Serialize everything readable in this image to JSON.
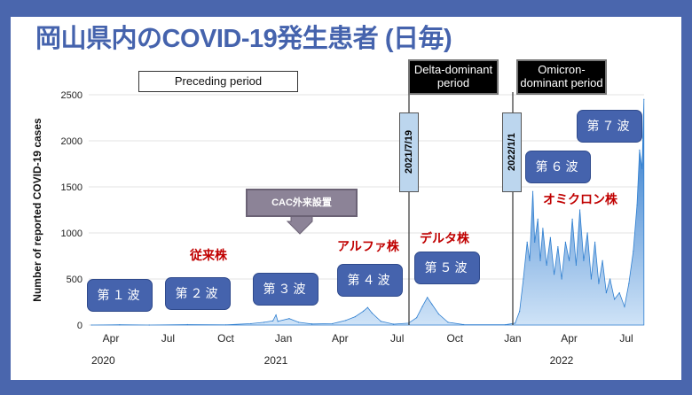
{
  "title": "岡山県内のCOVID-19発生患者 (日毎)",
  "periods": {
    "preceding": "Preceding period",
    "delta": "Delta-dominant period",
    "omicron": "Omicron-dominant period"
  },
  "markers": {
    "delta_date": "2021/7/19",
    "omicron_date": "2022/1/1"
  },
  "waves": [
    "第１波",
    "第２波",
    "第３波",
    "第４波",
    "第５波",
    "第６波",
    "第７波"
  ],
  "strains": {
    "conventional": "従来株",
    "alpha": "アルファ株",
    "delta": "デルタ株",
    "omicron": "オミクロン株"
  },
  "cac_label": "CAC外来設置",
  "colors": {
    "frame": "#4a66ad",
    "title": "#4563ad",
    "series": "#2f7fd0",
    "strain": "#c00000"
  },
  "chart_data": {
    "type": "area",
    "title": "岡山県内のCOVID-19発生患者 (日毎)",
    "ylabel": "Number of reported COVID-19 cases",
    "ylim": [
      0,
      2500
    ],
    "yticks": [
      0,
      500,
      1000,
      1500,
      2000,
      2500
    ],
    "xticks": [
      {
        "date": "2020-04-01",
        "label": "Apr"
      },
      {
        "date": "2020-07-01",
        "label": "Jul"
      },
      {
        "date": "2020-10-01",
        "label": "Oct"
      },
      {
        "date": "2021-01-01",
        "label": "Jan"
      },
      {
        "date": "2021-04-01",
        "label": "Apr"
      },
      {
        "date": "2021-07-01",
        "label": "Jul"
      },
      {
        "date": "2021-10-01",
        "label": "Oct"
      },
      {
        "date": "2022-01-01",
        "label": "Jan"
      },
      {
        "date": "2022-04-01",
        "label": "Apr"
      },
      {
        "date": "2022-07-01",
        "label": "Jul"
      }
    ],
    "years": [
      {
        "date": "2020-04-01",
        "label": "2020"
      },
      {
        "date": "2021-01-01",
        "label": "2021"
      },
      {
        "date": "2022-04-01",
        "label": "2022"
      }
    ],
    "grid": true,
    "points": [
      [
        "2020-03-01",
        0
      ],
      [
        "2020-04-15",
        3
      ],
      [
        "2020-06-01",
        0
      ],
      [
        "2020-08-01",
        5
      ],
      [
        "2020-10-01",
        2
      ],
      [
        "2020-11-10",
        15
      ],
      [
        "2020-12-01",
        30
      ],
      [
        "2020-12-15",
        45
      ],
      [
        "2020-12-20",
        110
      ],
      [
        "2020-12-23",
        40
      ],
      [
        "2021-01-10",
        70
      ],
      [
        "2021-01-25",
        30
      ],
      [
        "2021-02-15",
        12
      ],
      [
        "2021-03-20",
        15
      ],
      [
        "2021-04-10",
        50
      ],
      [
        "2021-04-25",
        90
      ],
      [
        "2021-05-08",
        150
      ],
      [
        "2021-05-15",
        190
      ],
      [
        "2021-05-22",
        130
      ],
      [
        "2021-06-05",
        40
      ],
      [
        "2021-06-25",
        10
      ],
      [
        "2021-07-19",
        20
      ],
      [
        "2021-08-01",
        80
      ],
      [
        "2021-08-10",
        200
      ],
      [
        "2021-08-18",
        300
      ],
      [
        "2021-08-25",
        230
      ],
      [
        "2021-09-05",
        120
      ],
      [
        "2021-09-20",
        30
      ],
      [
        "2021-10-15",
        5
      ],
      [
        "2021-12-20",
        3
      ],
      [
        "2022-01-05",
        20
      ],
      [
        "2022-01-12",
        150
      ],
      [
        "2022-01-18",
        500
      ],
      [
        "2022-01-24",
        900
      ],
      [
        "2022-01-28",
        700
      ],
      [
        "2022-02-02",
        1450
      ],
      [
        "2022-02-05",
        900
      ],
      [
        "2022-02-10",
        1150
      ],
      [
        "2022-02-14",
        700
      ],
      [
        "2022-02-18",
        1050
      ],
      [
        "2022-02-24",
        650
      ],
      [
        "2022-03-02",
        950
      ],
      [
        "2022-03-08",
        550
      ],
      [
        "2022-03-14",
        850
      ],
      [
        "2022-03-20",
        500
      ],
      [
        "2022-03-26",
        900
      ],
      [
        "2022-04-01",
        700
      ],
      [
        "2022-04-06",
        1150
      ],
      [
        "2022-04-12",
        650
      ],
      [
        "2022-04-18",
        1250
      ],
      [
        "2022-04-24",
        700
      ],
      [
        "2022-04-30",
        1000
      ],
      [
        "2022-05-06",
        500
      ],
      [
        "2022-05-12",
        900
      ],
      [
        "2022-05-18",
        450
      ],
      [
        "2022-05-24",
        700
      ],
      [
        "2022-05-30",
        350
      ],
      [
        "2022-06-05",
        500
      ],
      [
        "2022-06-12",
        280
      ],
      [
        "2022-06-20",
        350
      ],
      [
        "2022-06-28",
        200
      ],
      [
        "2022-07-05",
        450
      ],
      [
        "2022-07-12",
        800
      ],
      [
        "2022-07-18",
        1300
      ],
      [
        "2022-07-22",
        1900
      ],
      [
        "2022-07-26",
        1700
      ],
      [
        "2022-07-29",
        2450
      ]
    ]
  }
}
